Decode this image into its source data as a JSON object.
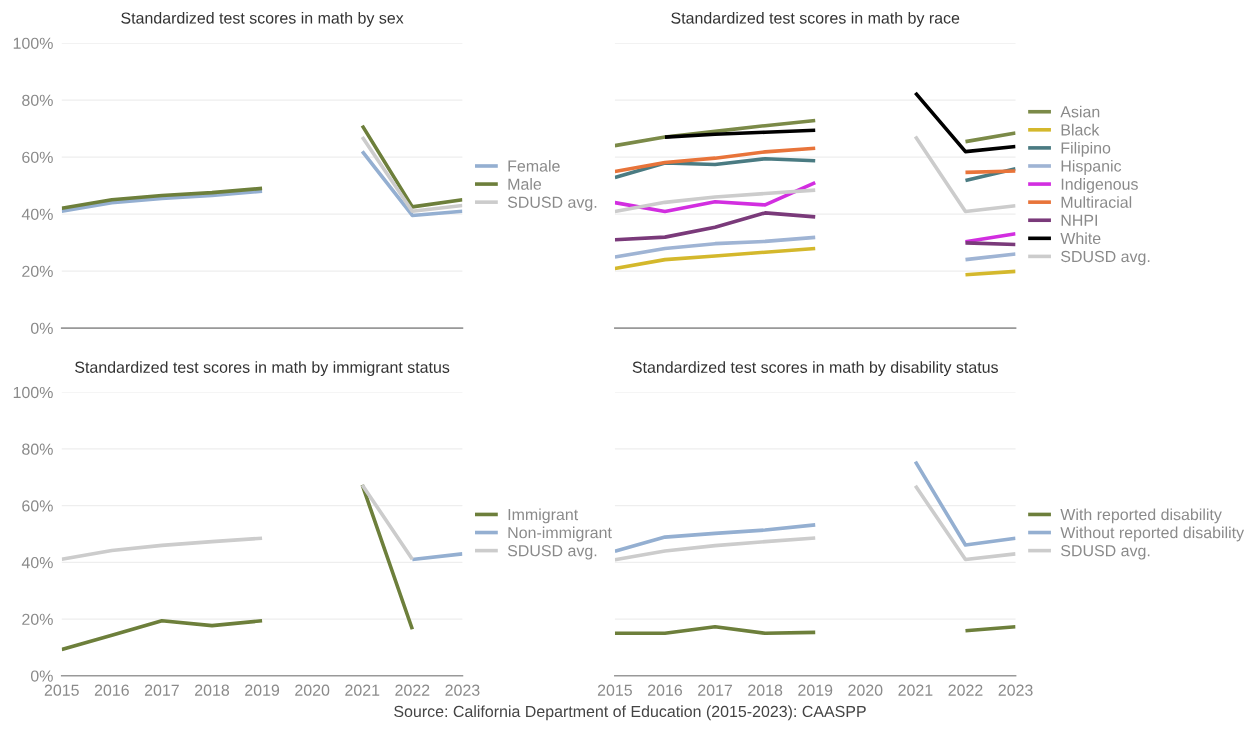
{
  "chart_data": [
    {
      "type": "line",
      "title": "Standardized test scores in math by sex",
      "x": [
        2015,
        2016,
        2017,
        2018,
        2019,
        2020,
        2021,
        2022,
        2023
      ],
      "xlim": [
        2015,
        2023
      ],
      "xticks": [
        2015,
        2016,
        2017,
        2018,
        2019,
        2020,
        2021,
        2022,
        2023
      ],
      "ylim": [
        0,
        100
      ],
      "yticks": [
        {
          "value": 0,
          "label": "0%"
        },
        {
          "value": 20,
          "label": "20%"
        },
        {
          "value": 40,
          "label": "40%"
        },
        {
          "value": 60,
          "label": "60%"
        },
        {
          "value": 80,
          "label": "80%"
        },
        {
          "value": 100,
          "label": "100%"
        }
      ],
      "tick_labels": "y",
      "grid": "y",
      "legend": "right",
      "line_style": "solid",
      "series": [
        {
          "name": "Female",
          "color": "#94afd1",
          "values": [
            41,
            44,
            45.5,
            46.5,
            48,
            null,
            62,
            39.5,
            41
          ]
        },
        {
          "name": "Male",
          "color": "#6d7f3b",
          "values": [
            42,
            45,
            46.5,
            47.5,
            49,
            null,
            71,
            42.5,
            45
          ]
        },
        {
          "name": "SDUSD avg.",
          "color": "#cccccc",
          "values": [
            null,
            null,
            null,
            null,
            null,
            null,
            67,
            41,
            43
          ]
        }
      ]
    },
    {
      "type": "line",
      "title": "Standardized test scores in math by race",
      "x": [
        2015,
        2016,
        2017,
        2018,
        2019,
        2020,
        2021,
        2022,
        2023
      ],
      "xlim": [
        2015,
        2023
      ],
      "xticks": [
        2015,
        2016,
        2017,
        2018,
        2019,
        2020,
        2021,
        2022,
        2023
      ],
      "ylim": [
        0,
        100
      ],
      "yticks": [
        0,
        20,
        40,
        60,
        80,
        100
      ],
      "tick_labels": false,
      "grid": "y",
      "legend": "right",
      "line_style": "solid",
      "series": [
        {
          "name": "Asian",
          "color": "#7b8a48",
          "values": [
            64,
            67,
            69,
            71,
            72.8,
            null,
            null,
            65.4,
            68.4
          ]
        },
        {
          "name": "Black",
          "color": "#d4b82c",
          "values": [
            20.9,
            24,
            25.3,
            26.6,
            27.9,
            null,
            null,
            18.7,
            19.9
          ]
        },
        {
          "name": "Filipino",
          "color": "#4a7b82",
          "values": [
            52.8,
            57.9,
            57.4,
            59.4,
            58.7,
            null,
            null,
            51.8,
            55.9
          ]
        },
        {
          "name": "Hispanic",
          "color": "#9fb4d4",
          "values": [
            24.9,
            27.9,
            29.6,
            30.4,
            31.8,
            null,
            null,
            24,
            26
          ]
        },
        {
          "name": "Indigenous",
          "color": "#d22ee0",
          "values": [
            44,
            40.9,
            44.3,
            43.2,
            51,
            null,
            null,
            30.3,
            33.1
          ]
        },
        {
          "name": "Multiracial",
          "color": "#e8743a",
          "values": [
            54.9,
            58.1,
            59.6,
            61.8,
            63.1,
            null,
            null,
            54.6,
            55.1
          ]
        },
        {
          "name": "NHPI",
          "color": "#7a3a7a",
          "values": [
            31,
            31.9,
            35.4,
            40.4,
            39,
            null,
            null,
            29.9,
            29.3
          ]
        },
        {
          "name": "White",
          "color": "#000000",
          "values": [
            null,
            67,
            68,
            68.7,
            69.4,
            null,
            82.5,
            61.9,
            63.7
          ]
        },
        {
          "name": "SDUSD avg.",
          "color": "#cccccc",
          "values": [
            40.9,
            44.1,
            46,
            47.2,
            48.4,
            null,
            67.2,
            40.9,
            42.9
          ]
        }
      ]
    },
    {
      "type": "line",
      "title": "Standardized test scores in math by immigrant status",
      "x": [
        2015,
        2016,
        2017,
        2018,
        2019,
        2020,
        2021,
        2022,
        2023
      ],
      "xlim": [
        2015,
        2023
      ],
      "xticks": [
        2015,
        2016,
        2017,
        2018,
        2019,
        2020,
        2021,
        2022,
        2023
      ],
      "ylim": [
        0,
        100
      ],
      "yticks": [
        {
          "value": 0,
          "label": "0%"
        },
        {
          "value": 20,
          "label": "20%"
        },
        {
          "value": 40,
          "label": "40%"
        },
        {
          "value": 60,
          "label": "60%"
        },
        {
          "value": 80,
          "label": "80%"
        },
        {
          "value": 100,
          "label": "100%"
        }
      ],
      "grid": "y",
      "legend": "right",
      "line_style": "solid",
      "annotations": [
        "Source: California Department of Education (2015-2023): CAASPP"
      ],
      "series": [
        {
          "name": "Immigrant",
          "color": "#6d7f3b",
          "values": [
            9.3,
            14.3,
            19.4,
            17.7,
            19.4,
            null,
            67.3,
            16.4,
            null
          ]
        },
        {
          "name": "Non-immigrant",
          "color": "#94afd1",
          "values": [
            null,
            null,
            null,
            null,
            null,
            null,
            null,
            41,
            43
          ]
        },
        {
          "name": "SDUSD avg.",
          "color": "#cccccc",
          "values": [
            41.1,
            44.2,
            46,
            47.3,
            48.5,
            null,
            67.3,
            41.1,
            null
          ]
        }
      ]
    },
    {
      "type": "line",
      "title": "Standardized test scores in math by disability status",
      "x": [
        2015,
        2016,
        2017,
        2018,
        2019,
        2020,
        2021,
        2022,
        2023
      ],
      "xlim": [
        2015,
        2023
      ],
      "xticks": [
        2015,
        2016,
        2017,
        2018,
        2019,
        2020,
        2021,
        2022,
        2023
      ],
      "ylim": [
        0,
        100
      ],
      "yticks": [
        0,
        20,
        40,
        60,
        80,
        100
      ],
      "tick_labels": "x",
      "grid": "y",
      "legend": "right",
      "line_style": "solid",
      "series": [
        {
          "name": "With reported disability",
          "color": "#6d7f3b",
          "values": [
            15,
            15,
            17.3,
            15,
            15.3,
            null,
            null,
            15.9,
            17.3
          ]
        },
        {
          "name": "Without reported disability",
          "color": "#94afd1",
          "values": [
            43.9,
            48.9,
            50.2,
            51.4,
            53.2,
            null,
            75.5,
            46.1,
            48.5
          ]
        },
        {
          "name": "SDUSD avg.",
          "color": "#cccccc",
          "values": [
            40.9,
            44,
            45.9,
            47.3,
            48.6,
            null,
            67,
            41,
            43
          ]
        }
      ]
    }
  ]
}
